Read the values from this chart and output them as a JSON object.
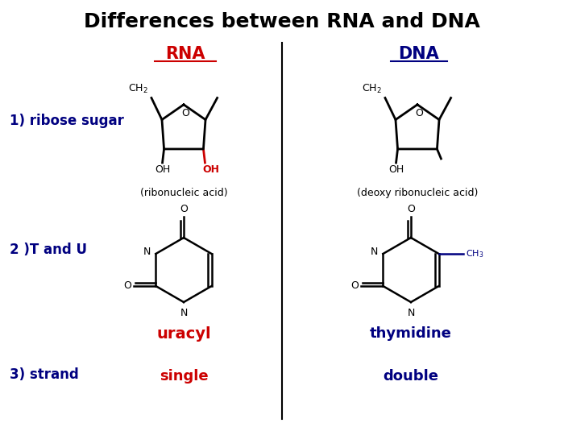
{
  "title": "Differences between RNA and DNA",
  "title_fontsize": 18,
  "bg_color": "#ffffff",
  "rna_label": "RNA",
  "dna_label": "DNA",
  "rna_color": "#cc0000",
  "dna_color": "#000080",
  "label_color": "#000080",
  "row1_label": "1) ribose sugar",
  "row2_label": "2 )T and U",
  "row3_label": "3) strand",
  "rna_caption": "(ribonucleic acid)",
  "dna_caption": "(deoxy ribonucleic acid)",
  "uracyl_label": "uracyl",
  "thymidine_label": "thymidine",
  "single_label": "single",
  "double_label": "double"
}
